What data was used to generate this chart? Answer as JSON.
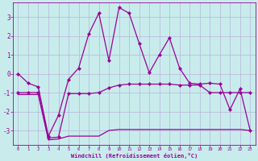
{
  "xlabel": "Windchill (Refroidissement éolien,°C)",
  "x": [
    0,
    1,
    2,
    3,
    4,
    5,
    6,
    7,
    8,
    9,
    10,
    11,
    12,
    13,
    14,
    15,
    16,
    17,
    18,
    19,
    20,
    21,
    22,
    23
  ],
  "line1": [
    0.0,
    -0.5,
    -0.7,
    -3.3,
    -2.2,
    -0.3,
    0.3,
    2.1,
    3.2,
    0.7,
    3.5,
    3.2,
    1.6,
    0.05,
    1.0,
    1.9,
    0.3,
    -0.5,
    -0.55,
    -0.5,
    -0.55,
    -1.9,
    -0.8,
    -3.0
  ],
  "line2": [
    -1.0,
    -1.0,
    -1.0,
    -3.4,
    -3.35,
    -1.05,
    -1.05,
    -1.05,
    -1.0,
    -0.75,
    -0.6,
    -0.55,
    -0.55,
    -0.55,
    -0.55,
    -0.55,
    -0.6,
    -0.6,
    -0.6,
    -1.0,
    -1.0,
    -1.0,
    -1.0,
    -1.0
  ],
  "line3": [
    -1.1,
    -1.1,
    -1.1,
    -3.5,
    -3.45,
    -3.3,
    -3.3,
    -3.3,
    -3.3,
    -3.0,
    -2.95,
    -2.95,
    -2.95,
    -2.95,
    -2.95,
    -2.95,
    -2.95,
    -2.95,
    -2.95,
    -2.95,
    -2.95,
    -2.95,
    -2.95,
    -3.0
  ],
  "xlim": [
    -0.5,
    23.5
  ],
  "ylim": [
    -3.75,
    3.75
  ],
  "yticks": [
    -3,
    -2,
    -1,
    0,
    1,
    2,
    3
  ],
  "line_color": "#990099",
  "bg_color": "#c8ecec",
  "grid_color": "#aaaacc",
  "spine_color": "#990099",
  "tick_color": "#990099",
  "label_color": "#990099"
}
